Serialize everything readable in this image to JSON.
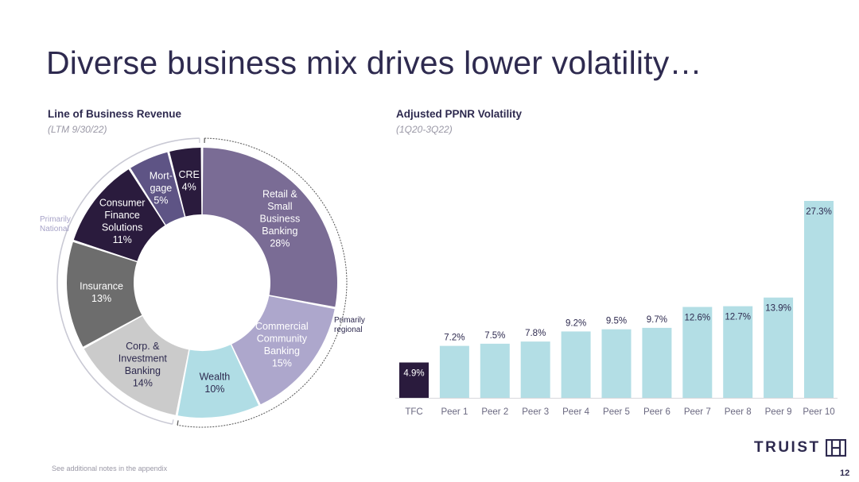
{
  "slide": {
    "title": "Diverse business mix drives lower volatility…",
    "footnote": "See additional notes in the appendix",
    "page_number": "12",
    "logo_text": "TRUIST"
  },
  "colors": {
    "title": "#2e2a4f",
    "retail": "#7a6c95",
    "commercial": "#ada7cc",
    "wealth": "#b0dde5",
    "corp": "#cbcbcb",
    "insurance": "#6d6d6d",
    "consumer": "#2a1b3d",
    "mortgage": "#5e5485",
    "cre": "#2a1b3d",
    "bar_tfc": "#2a1b3d",
    "bar_peer": "#b3dee5"
  },
  "chart_data": [
    {
      "type": "pie",
      "title": "Line of Business Revenue",
      "subtitle": "(LTM 9/30/22)",
      "slices": [
        {
          "label": "Retail & Small Business Banking",
          "value": 28,
          "display": [
            "Retail &",
            "Small",
            "Business",
            "Banking",
            "28%"
          ],
          "color": "#7a6c95",
          "text_color": "#ffffff"
        },
        {
          "label": "Commercial Community Banking",
          "value": 15,
          "display": [
            "Commercial",
            "Community",
            "Banking",
            "15%"
          ],
          "color": "#ada7cc",
          "text_color": "#ffffff"
        },
        {
          "label": "Wealth",
          "value": 10,
          "display": [
            "Wealth",
            "10%"
          ],
          "color": "#b0dde5",
          "text_color": "#2e2a4f"
        },
        {
          "label": "Corp. & Investment Banking",
          "value": 14,
          "display": [
            "Corp. &",
            "Investment",
            "Banking",
            "14%"
          ],
          "color": "#cbcbcb",
          "text_color": "#2e2a4f"
        },
        {
          "label": "Insurance",
          "value": 13,
          "display": [
            "Insurance",
            "13%"
          ],
          "color": "#6d6d6d",
          "text_color": "#ffffff"
        },
        {
          "label": "Consumer Finance Solutions",
          "value": 11,
          "display": [
            "Consumer",
            "Finance",
            "Solutions",
            "11%"
          ],
          "color": "#2a1b3d",
          "text_color": "#ffffff"
        },
        {
          "label": "Mortgage",
          "value": 5,
          "display": [
            "Mort-",
            "gage",
            "5%"
          ],
          "color": "#5e5485",
          "text_color": "#ffffff"
        },
        {
          "label": "CRE",
          "value": 4,
          "display": [
            "CRE",
            "4%"
          ],
          "color": "#2a1b3d",
          "text_color": "#ffffff"
        }
      ],
      "annotations": [
        {
          "text": [
            "Primarily",
            "regional"
          ]
        },
        {
          "text": [
            "Primarily",
            "National"
          ]
        }
      ]
    },
    {
      "type": "bar",
      "title": "Adjusted PPNR Volatility",
      "subtitle": "(1Q20-3Q22)",
      "categories": [
        "TFC",
        "Peer 1",
        "Peer 2",
        "Peer 3",
        "Peer 4",
        "Peer 5",
        "Peer 6",
        "Peer 7",
        "Peer 8",
        "Peer 9",
        "Peer 10"
      ],
      "values": [
        4.9,
        7.2,
        7.5,
        7.8,
        9.2,
        9.5,
        9.7,
        12.6,
        12.7,
        13.9,
        27.3
      ],
      "value_labels": [
        "4.9%",
        "7.2%",
        "7.5%",
        "7.8%",
        "9.2%",
        "9.5%",
        "9.7%",
        "12.6%",
        "12.7%",
        "13.9%",
        "27.3%"
      ],
      "ylim": [
        0,
        27.3
      ]
    }
  ]
}
